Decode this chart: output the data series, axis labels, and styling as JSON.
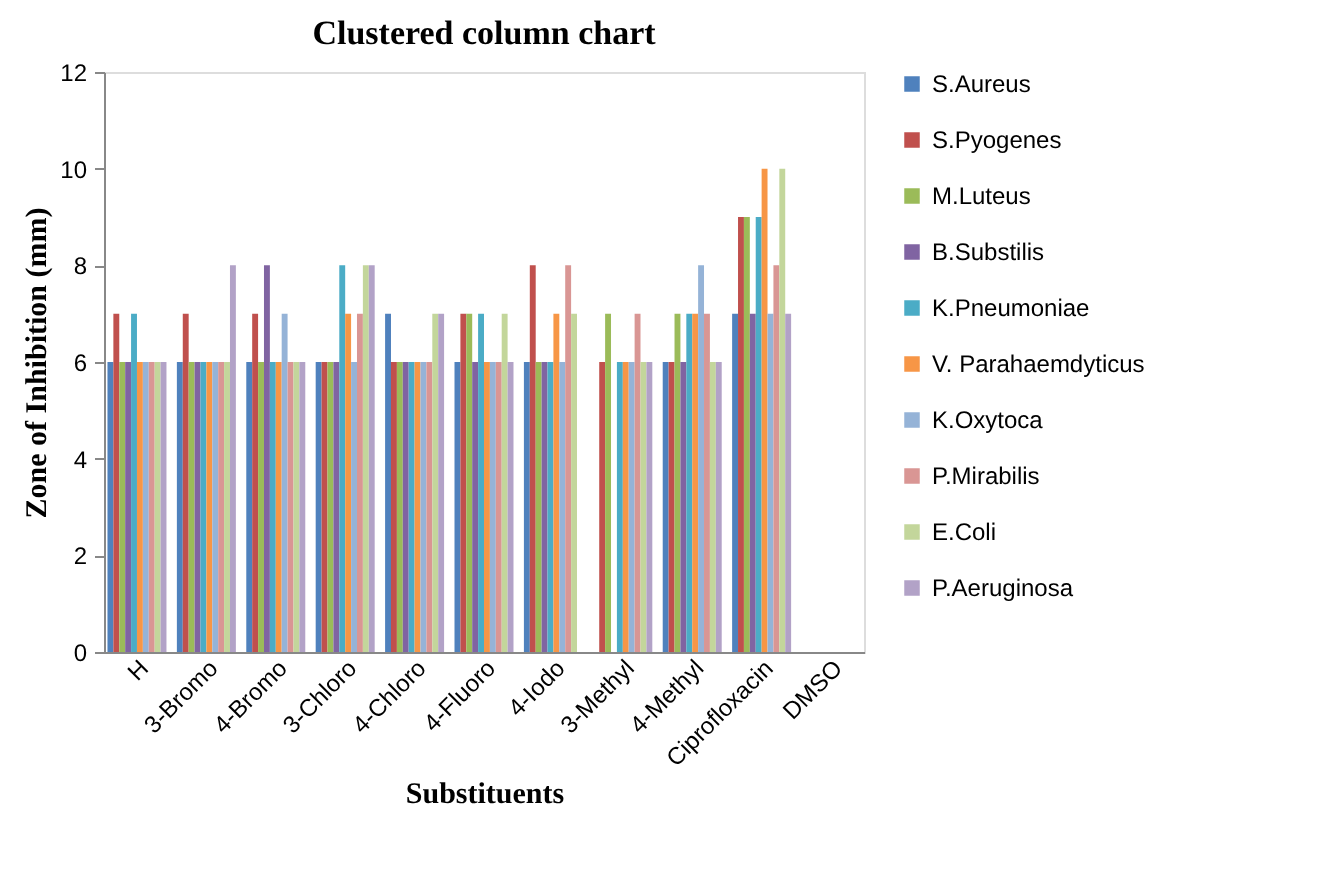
{
  "chart_data": {
    "type": "bar",
    "title": "Clustered column chart",
    "xlabel": "Substituents",
    "ylabel": "Zone of Inhibition (mm)",
    "categories": [
      "H",
      "3-Bromo",
      "4-Bromo",
      "3-Chloro",
      "4-Chloro",
      "4-Fluoro",
      "4-Iodo",
      "3-Methyl",
      "4-Methyl",
      "Ciprofloxacin",
      "DMSO"
    ],
    "series": [
      {
        "name": "S.Aureus",
        "color": "#4f81bd",
        "values": [
          6,
          6,
          6,
          6,
          7,
          6,
          6,
          0,
          6,
          7,
          0
        ]
      },
      {
        "name": "S.Pyogenes",
        "color": "#c0504d",
        "values": [
          7,
          7,
          7,
          6,
          6,
          7,
          8,
          6,
          6,
          9,
          0
        ]
      },
      {
        "name": "M.Luteus",
        "color": "#9bbb59",
        "values": [
          6,
          6,
          6,
          6,
          6,
          7,
          6,
          7,
          7,
          9,
          0
        ]
      },
      {
        "name": "B.Substilis",
        "color": "#8064a2",
        "values": [
          6,
          6,
          8,
          6,
          6,
          6,
          6,
          0,
          6,
          7,
          0
        ]
      },
      {
        "name": "K.Pneumoniae",
        "color": "#4bacc6",
        "values": [
          7,
          6,
          6,
          8,
          6,
          7,
          6,
          6,
          7,
          9,
          0
        ]
      },
      {
        "name": "V. Parahaemdyticus",
        "color": "#f79646",
        "values": [
          6,
          6,
          6,
          7,
          6,
          6,
          7,
          6,
          7,
          10,
          0
        ]
      },
      {
        "name": "K.Oxytoca",
        "color": "#95b3d7",
        "values": [
          6,
          6,
          7,
          6,
          6,
          6,
          6,
          6,
          8,
          7,
          0
        ]
      },
      {
        "name": "P.Mirabilis",
        "color": "#d99694",
        "values": [
          6,
          6,
          6,
          7,
          6,
          6,
          8,
          7,
          7,
          8,
          0
        ]
      },
      {
        "name": "E.Coli",
        "color": "#c3d69b",
        "values": [
          6,
          6,
          6,
          8,
          7,
          7,
          7,
          6,
          6,
          10,
          0
        ]
      },
      {
        "name": "P.Aeruginosa",
        "color": "#b2a2c7",
        "values": [
          6,
          8,
          6,
          8,
          7,
          6,
          0,
          6,
          6,
          7,
          0
        ]
      }
    ],
    "ylim": [
      0,
      12
    ],
    "yticks": [
      0,
      2,
      4,
      6,
      8,
      10,
      12
    ],
    "grid": false,
    "legend": "right"
  }
}
